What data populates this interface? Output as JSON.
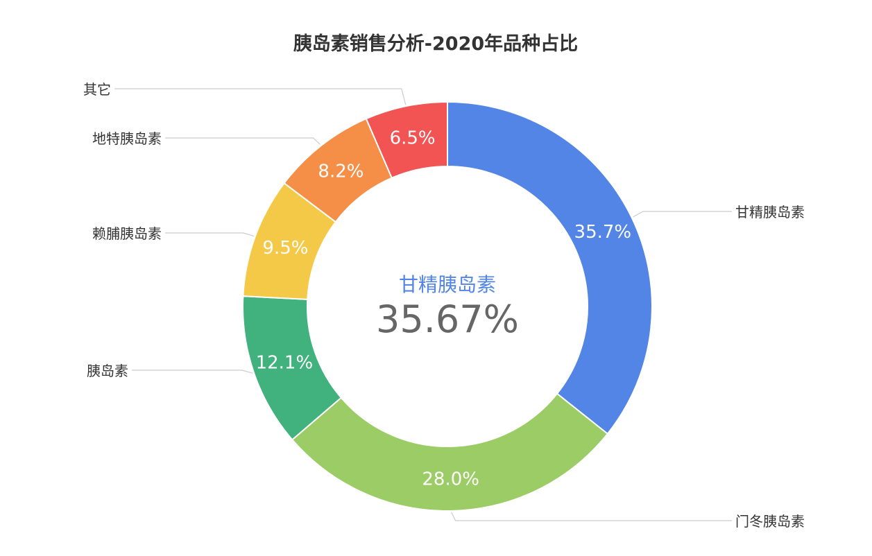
{
  "chart_data": {
    "type": "pie",
    "title": "胰岛素销售分析-2020年品种占比",
    "slices": [
      {
        "name": "甘精胰岛素",
        "value": 35.7,
        "label": "35.7%",
        "color": "#5285e5"
      },
      {
        "name": "门冬胰岛素",
        "value": 28.0,
        "label": "28.0%",
        "color": "#9ccc65"
      },
      {
        "name": "胰岛素",
        "value": 12.1,
        "label": "12.1%",
        "color": "#41b27e"
      },
      {
        "name": "赖脯胰岛素",
        "value": 9.5,
        "label": "9.5%",
        "color": "#f5c948"
      },
      {
        "name": "地特胰岛素",
        "value": 8.2,
        "label": "8.2%",
        "color": "#f58f47"
      },
      {
        "name": "其它",
        "value": 6.5,
        "label": "6.5%",
        "color": "#f25454"
      }
    ],
    "center": {
      "name": "甘精胰岛素",
      "value": "35.67%",
      "name_color": "#5285e5"
    }
  }
}
